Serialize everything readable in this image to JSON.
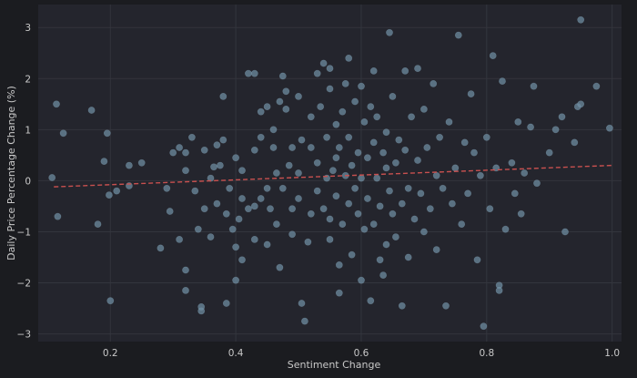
{
  "chart_data": {
    "type": "scatter",
    "xlabel": "Sentiment Change",
    "ylabel": "Daily Price Percentage Change (%)",
    "xlim": [
      0.085,
      1.015
    ],
    "ylim": [
      -3.15,
      3.45
    ],
    "xticks": [
      0.2,
      0.4,
      0.6,
      0.8,
      1.0
    ],
    "xtick_labels": [
      "0.2",
      "0.4",
      "0.6",
      "0.8",
      "1.0"
    ],
    "yticks": [
      -3,
      -2,
      -1,
      0,
      1,
      2,
      3
    ],
    "ytick_labels": [
      "−3",
      "−2",
      "−1",
      "0",
      "1",
      "2",
      "3"
    ],
    "grid": true,
    "colors": {
      "background": "#1b1c20",
      "plot_background": "#24252d",
      "grid": "#33353d",
      "points": "#6f8fa3",
      "trend_line": "#c8504f",
      "text": "#c9c9c9"
    },
    "trend_line": {
      "x": [
        0.11,
        1.0
      ],
      "y": [
        -0.12,
        0.3
      ]
    },
    "series": [
      {
        "points": [
          [
            0.107,
            0.06
          ],
          [
            0.114,
            1.5
          ],
          [
            0.116,
            -0.7
          ],
          [
            0.125,
            0.93
          ],
          [
            0.17,
            1.38
          ],
          [
            0.18,
            -0.85
          ],
          [
            0.19,
            0.38
          ],
          [
            0.195,
            0.93
          ],
          [
            0.198,
            -0.28
          ],
          [
            0.2,
            -2.35
          ],
          [
            0.21,
            -0.2
          ],
          [
            0.23,
            -0.1
          ],
          [
            0.23,
            0.3
          ],
          [
            0.25,
            0.35
          ],
          [
            0.28,
            -1.32
          ],
          [
            0.29,
            -0.15
          ],
          [
            0.295,
            -0.6
          ],
          [
            0.3,
            0.55
          ],
          [
            0.31,
            0.65
          ],
          [
            0.31,
            -1.15
          ],
          [
            0.32,
            0.55
          ],
          [
            0.32,
            0.2
          ],
          [
            0.32,
            -1.75
          ],
          [
            0.32,
            -2.15
          ],
          [
            0.33,
            0.85
          ],
          [
            0.335,
            -0.2
          ],
          [
            0.34,
            -0.95
          ],
          [
            0.345,
            -2.55
          ],
          [
            0.345,
            -2.47
          ],
          [
            0.35,
            -0.55
          ],
          [
            0.35,
            0.6
          ],
          [
            0.36,
            0.05
          ],
          [
            0.36,
            -1.1
          ],
          [
            0.365,
            0.27
          ],
          [
            0.37,
            -0.45
          ],
          [
            0.375,
            0.3
          ],
          [
            0.37,
            0.7
          ],
          [
            0.38,
            1.65
          ],
          [
            0.38,
            0.8
          ],
          [
            0.385,
            -0.65
          ],
          [
            0.385,
            -2.4
          ],
          [
            0.39,
            -0.15
          ],
          [
            0.395,
            -0.95
          ],
          [
            0.4,
            -1.95
          ],
          [
            0.4,
            0.45
          ],
          [
            0.4,
            -1.3
          ],
          [
            0.405,
            -0.75
          ],
          [
            0.41,
            -0.35
          ],
          [
            0.41,
            -1.55
          ],
          [
            0.41,
            0.2
          ],
          [
            0.42,
            2.1
          ],
          [
            0.42,
            -0.55
          ],
          [
            0.43,
            0.6
          ],
          [
            0.43,
            2.1
          ],
          [
            0.43,
            -0.5
          ],
          [
            0.43,
            -1.15
          ],
          [
            0.44,
            -0.35
          ],
          [
            0.44,
            1.35
          ],
          [
            0.44,
            0.85
          ],
          [
            0.45,
            1.45
          ],
          [
            0.45,
            -0.15
          ],
          [
            0.45,
            -1.25
          ],
          [
            0.455,
            -0.55
          ],
          [
            0.46,
            0.65
          ],
          [
            0.46,
            1.0
          ],
          [
            0.465,
            0.15
          ],
          [
            0.465,
            -0.85
          ],
          [
            0.47,
            1.55
          ],
          [
            0.47,
            -1.7
          ],
          [
            0.475,
            -0.15
          ],
          [
            0.475,
            2.05
          ],
          [
            0.48,
            1.75
          ],
          [
            0.48,
            1.4
          ],
          [
            0.485,
            0.3
          ],
          [
            0.49,
            0.65
          ],
          [
            0.49,
            -0.55
          ],
          [
            0.49,
            -1.05
          ],
          [
            0.5,
            -0.35
          ],
          [
            0.5,
            0.15
          ],
          [
            0.5,
            1.65
          ],
          [
            0.505,
            0.8
          ],
          [
            0.505,
            -2.4
          ],
          [
            0.51,
            -2.75
          ],
          [
            0.515,
            -1.2
          ],
          [
            0.52,
            0.65
          ],
          [
            0.52,
            1.25
          ],
          [
            0.52,
            -0.65
          ],
          [
            0.53,
            -0.2
          ],
          [
            0.53,
            2.1
          ],
          [
            0.53,
            0.35
          ],
          [
            0.535,
            1.45
          ],
          [
            0.54,
            -0.55
          ],
          [
            0.54,
            2.3
          ],
          [
            0.545,
            0.05
          ],
          [
            0.545,
            0.85
          ],
          [
            0.55,
            -1.15
          ],
          [
            0.55,
            1.8
          ],
          [
            0.55,
            -0.75
          ],
          [
            0.55,
            2.2
          ],
          [
            0.555,
            0.2
          ],
          [
            0.56,
            0.45
          ],
          [
            0.56,
            -0.3
          ],
          [
            0.56,
            1.1
          ],
          [
            0.565,
            -1.65
          ],
          [
            0.565,
            0.65
          ],
          [
            0.565,
            -2.2
          ],
          [
            0.57,
            -0.85
          ],
          [
            0.57,
            1.35
          ],
          [
            0.575,
            1.9
          ],
          [
            0.575,
            0.1
          ],
          [
            0.58,
            -0.45
          ],
          [
            0.58,
            2.4
          ],
          [
            0.58,
            0.85
          ],
          [
            0.585,
            -1.45
          ],
          [
            0.585,
            0.3
          ],
          [
            0.59,
            1.55
          ],
          [
            0.59,
            -0.15
          ],
          [
            0.595,
            -0.65
          ],
          [
            0.595,
            0.55
          ],
          [
            0.6,
            1.85
          ],
          [
            0.6,
            -1.95
          ],
          [
            0.6,
            0.05
          ],
          [
            0.605,
            1.15
          ],
          [
            0.605,
            -0.95
          ],
          [
            0.61,
            0.45
          ],
          [
            0.61,
            -0.35
          ],
          [
            0.615,
            1.45
          ],
          [
            0.615,
            -2.35
          ],
          [
            0.62,
            0.75
          ],
          [
            0.62,
            -0.85
          ],
          [
            0.62,
            2.15
          ],
          [
            0.625,
            0.05
          ],
          [
            0.625,
            1.25
          ],
          [
            0.63,
            -1.55
          ],
          [
            0.63,
            -0.5
          ],
          [
            0.635,
            0.55
          ],
          [
            0.635,
            -1.85
          ],
          [
            0.64,
            0.95
          ],
          [
            0.64,
            0.25
          ],
          [
            0.64,
            -1.25
          ],
          [
            0.645,
            2.9
          ],
          [
            0.645,
            -0.2
          ],
          [
            0.65,
            1.65
          ],
          [
            0.65,
            -0.65
          ],
          [
            0.655,
            -1.1
          ],
          [
            0.655,
            0.35
          ],
          [
            0.66,
            0.8
          ],
          [
            0.665,
            -2.45
          ],
          [
            0.665,
            -0.45
          ],
          [
            0.67,
            2.15
          ],
          [
            0.67,
            0.6
          ],
          [
            0.675,
            -0.15
          ],
          [
            0.675,
            -1.5
          ],
          [
            0.68,
            1.25
          ],
          [
            0.685,
            -0.75
          ],
          [
            0.69,
            0.4
          ],
          [
            0.69,
            2.2
          ],
          [
            0.695,
            -0.25
          ],
          [
            0.7,
            1.4
          ],
          [
            0.7,
            -1.0
          ],
          [
            0.705,
            0.65
          ],
          [
            0.71,
            -0.55
          ],
          [
            0.715,
            1.9
          ],
          [
            0.72,
            0.1
          ],
          [
            0.72,
            -1.35
          ],
          [
            0.725,
            0.85
          ],
          [
            0.73,
            -0.15
          ],
          [
            0.735,
            -2.45
          ],
          [
            0.74,
            1.15
          ],
          [
            0.745,
            -0.45
          ],
          [
            0.75,
            0.25
          ],
          [
            0.755,
            2.85
          ],
          [
            0.76,
            -0.85
          ],
          [
            0.765,
            0.75
          ],
          [
            0.77,
            -0.25
          ],
          [
            0.775,
            1.7
          ],
          [
            0.78,
            0.55
          ],
          [
            0.785,
            -1.55
          ],
          [
            0.79,
            0.1
          ],
          [
            0.795,
            -2.85
          ],
          [
            0.8,
            0.85
          ],
          [
            0.805,
            -0.55
          ],
          [
            0.81,
            2.45
          ],
          [
            0.815,
            0.25
          ],
          [
            0.82,
            -2.05
          ],
          [
            0.82,
            -2.15
          ],
          [
            0.825,
            1.95
          ],
          [
            0.83,
            -0.95
          ],
          [
            0.84,
            0.35
          ],
          [
            0.845,
            -0.25
          ],
          [
            0.85,
            1.15
          ],
          [
            0.855,
            -0.65
          ],
          [
            0.86,
            0.15
          ],
          [
            0.87,
            1.05
          ],
          [
            0.875,
            1.85
          ],
          [
            0.88,
            -0.05
          ],
          [
            0.9,
            0.55
          ],
          [
            0.91,
            1.0
          ],
          [
            0.92,
            1.25
          ],
          [
            0.925,
            -1.0
          ],
          [
            0.94,
            0.75
          ],
          [
            0.945,
            1.45
          ],
          [
            0.95,
            1.5
          ],
          [
            0.95,
            3.15
          ],
          [
            0.975,
            1.85
          ],
          [
            0.996,
            1.03
          ]
        ]
      }
    ]
  }
}
